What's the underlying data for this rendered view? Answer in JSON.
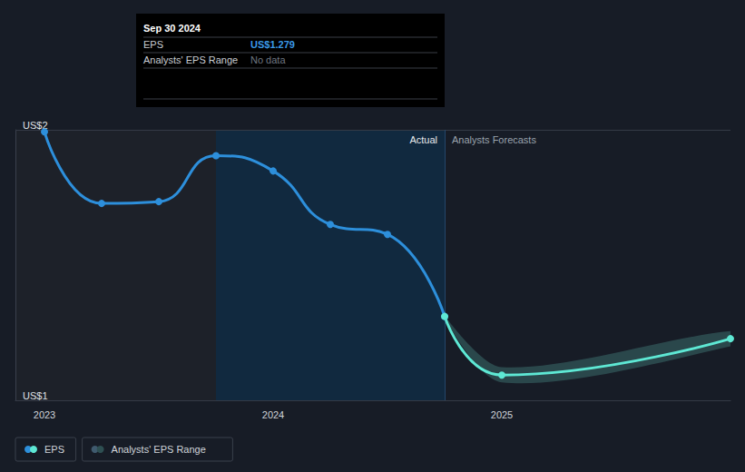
{
  "chart_data": {
    "type": "line",
    "x": [
      2023.0,
      2023.25,
      2023.5,
      2023.75,
      2024.0,
      2024.25,
      2024.5,
      2024.75,
      2025.0,
      2026.0
    ],
    "series": [
      {
        "name": "EPS",
        "values": [
          1.893,
          1.655,
          1.661,
          1.814,
          1.763,
          1.585,
          1.552,
          1.279,
          1.084,
          1.205
        ],
        "colors": [
          "#2d8fdb",
          "#2d8fdb",
          "#2d8fdb",
          "#2d8fdb",
          "#2d8fdb",
          "#2d8fdb",
          "#2d8fdb",
          "#2d8fdb",
          "#5ee8d4",
          "#5ee8d4"
        ]
      },
      {
        "name": "Analysts' EPS Range",
        "color": "#2e4f52",
        "low": [
          null,
          null,
          null,
          null,
          null,
          null,
          null,
          1.279,
          1.06,
          1.18
        ],
        "high": [
          null,
          null,
          null,
          null,
          null,
          null,
          null,
          1.279,
          1.11,
          1.23
        ]
      }
    ],
    "xlim": [
      2022.873,
      2026.0
    ],
    "xticks": [
      2023,
      2024,
      2025
    ],
    "ylim": [
      1,
      1.9
    ],
    "yticks": [
      {
        "value": 1,
        "label": "US$1"
      },
      {
        "value": 1.9,
        "label": "US$2"
      }
    ],
    "grid": true,
    "legend": "bottom-left",
    "marker": "circle",
    "highlight_range": [
      2023.75,
      2024.75
    ],
    "region_labels": [
      "Actual",
      "Analysts Forecasts"
    ],
    "tooltip": {
      "title": "Sep 30 2024",
      "rows": [
        {
          "label": "EPS",
          "value": "US$1.279"
        },
        {
          "label": "Analysts' EPS Range",
          "value": "No data"
        }
      ]
    }
  }
}
